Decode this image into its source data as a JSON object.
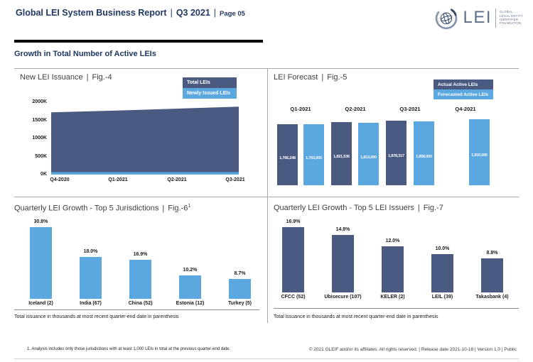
{
  "header": {
    "title": "Global LEI System Business Report",
    "separator": "|",
    "period": "Q3 2021",
    "page_label": "Page 05",
    "logo": {
      "lei_text": "LEI",
      "org_lines": [
        "GLOBAL",
        "LEGAL ENTITY",
        "IDENTIFIER",
        "FOUNDATION"
      ]
    }
  },
  "section": {
    "title": "Growth in Total Number of Active LEIs"
  },
  "colors": {
    "dark_blue": "#4A5A80",
    "light_blue": "#5BA7E0",
    "navy": "#1F3864"
  },
  "panels": {
    "fig4": {
      "name": "New LEI Issuance",
      "sep": "|",
      "fig": "Fig.-4",
      "y_tick_labels": [
        "2000K",
        "1500K",
        "1000K",
        "500K",
        "0K"
      ]
    },
    "fig5": {
      "name": "LEI Forecast",
      "sep": "|",
      "fig": "Fig.-5"
    },
    "fig6": {
      "name": "Quarterly LEI Growth - Top 5 Jurisdictions",
      "sep": "|",
      "fig": "Fig.-6",
      "footnote_ref": "1",
      "note": "Total issuance in thousands at most recent quarter-end date in parenthesis"
    },
    "fig7": {
      "name": "Quarterly LEI Growth - Top 5 LEI Issuers",
      "sep": "|",
      "fig": "Fig.-7",
      "note": "Total issuance in thousands at most recent quarter-end date in parenthesis"
    }
  },
  "legends": {
    "fig4": [
      "Total LEIs",
      "Newly Issued LEIs"
    ],
    "fig5": [
      "Actual Active LEIs",
      "Forecasted Active LEIs"
    ]
  },
  "footnote": "1. Analysis includes only those jurisdictions with at least 1,000 LEIs in total at the previous quarter-end date.",
  "footer": "© 2021 GLEIF and/or its affiliates. All rights reserved.  |  Release date 2021-10-18  |  Version 1.0  |  Public",
  "chart_data": [
    {
      "id": "fig4",
      "type": "area",
      "title": "New LEI Issuance | Fig.-4",
      "categories": [
        "Q4-2020",
        "Q1-2021",
        "Q2-2021",
        "Q3-2021"
      ],
      "series": [
        {
          "name": "Total LEIs",
          "values": [
            1720000,
            1766248,
            1821536,
            1878317
          ],
          "estimated_from_plot": [
            true,
            false,
            false,
            false
          ]
        },
        {
          "name": "Newly Issued LEIs",
          "values": [
            50000,
            52000,
            56000,
            57000
          ],
          "estimated_from_plot": [
            true,
            true,
            true,
            true
          ]
        }
      ],
      "xlabel": "",
      "ylabel": "",
      "ylim": [
        0,
        2000000
      ],
      "y_ticks": [
        2000000,
        1500000,
        1000000,
        500000,
        0
      ],
      "grid": false,
      "legend_position": "top-right"
    },
    {
      "id": "fig5",
      "type": "bar",
      "title": "LEI Forecast | Fig.-5",
      "categories": [
        "Q1-2021",
        "Q2-2021",
        "Q3-2021",
        "Q4-2021"
      ],
      "series": [
        {
          "name": "Actual Active LEIs",
          "values": [
            1766248,
            1821536,
            1878317,
            null
          ],
          "labels": [
            "1,766,248",
            "1,821,536",
            "1,878,317",
            null
          ]
        },
        {
          "name": "Forecasted Active LEIs",
          "values": [
            1763000,
            1813000,
            1858000,
            1910000
          ],
          "labels": [
            "1,763,000",
            "1,813,000",
            "1,858,000",
            "1,910,000"
          ]
        }
      ],
      "xlabel": "",
      "ylabel": "",
      "data_labels": "inside-white",
      "grid": false,
      "legend_position": "top-right"
    },
    {
      "id": "fig6",
      "type": "bar",
      "title": "Quarterly LEI Growth - Top 5 Jurisdictions | Fig.-6 (footnote 1)",
      "categories": [
        "Iceland (2)",
        "India (67)",
        "China (52)",
        "Estonia (12)",
        "Turkey (5)"
      ],
      "values": [
        30.8,
        18.0,
        16.9,
        10.2,
        8.7
      ],
      "value_labels": [
        "30.8%",
        "18.0%",
        "16.9%",
        "10.2%",
        "8.7%"
      ],
      "unit": "percent",
      "xlabel": "",
      "ylabel": "",
      "grid": false,
      "legend_position": "none"
    },
    {
      "id": "fig7",
      "type": "bar",
      "title": "Quarterly LEI Growth - Top 5 LEI Issuers | Fig.-7",
      "categories": [
        "CFCC (52)",
        "Ubisecure (107)",
        "KELER (2)",
        "LEIL (39)",
        "Takasbank (4)"
      ],
      "values": [
        16.9,
        14.8,
        12.0,
        10.0,
        8.8
      ],
      "value_labels": [
        "16.9%",
        "14.8%",
        "12.0%",
        "10.0%",
        "8.8%"
      ],
      "unit": "percent",
      "xlabel": "",
      "ylabel": "",
      "grid": false,
      "legend_position": "none"
    }
  ]
}
